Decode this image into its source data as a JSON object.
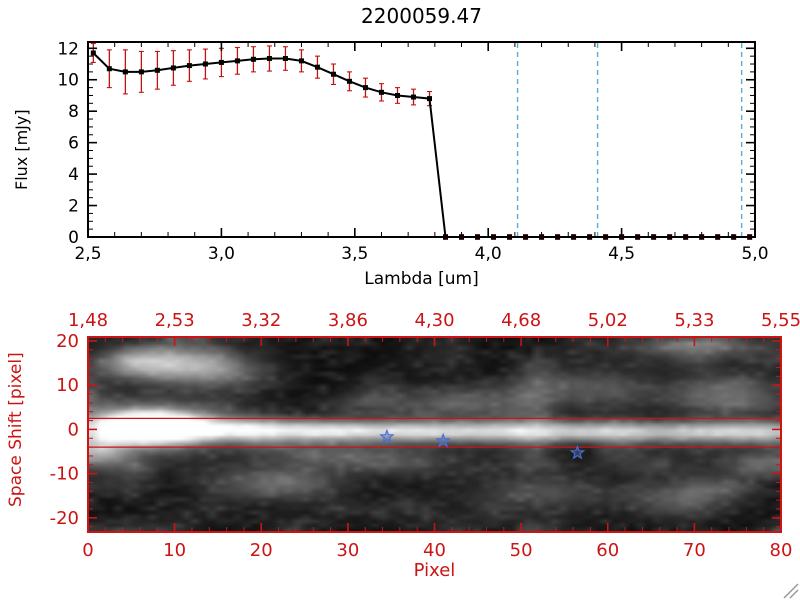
{
  "window": {
    "background": "#ffffff"
  },
  "chart_data": [
    {
      "type": "line",
      "title": "2200059.47",
      "xlabel": "Lambda [um]",
      "ylabel": "Flux [mJy]",
      "xlim": [
        2.5,
        5.0
      ],
      "ylim": [
        0,
        12.4
      ],
      "xticks": [
        2.5,
        3.0,
        3.5,
        4.0,
        4.5,
        5.0
      ],
      "xtick_labels": [
        "2,5",
        "3,0",
        "3,5",
        "4,0",
        "4,5",
        "5,0"
      ],
      "yticks": [
        0,
        2,
        4,
        6,
        8,
        10,
        12
      ],
      "ytick_labels": [
        "0",
        "2",
        "4",
        "6",
        "8",
        "10",
        "12"
      ],
      "x": [
        2.52,
        2.58,
        2.64,
        2.7,
        2.76,
        2.82,
        2.88,
        2.94,
        3.0,
        3.06,
        3.12,
        3.18,
        3.24,
        3.3,
        3.36,
        3.42,
        3.48,
        3.54,
        3.6,
        3.66,
        3.72,
        3.78,
        3.84,
        3.9,
        3.96,
        4.02,
        4.08,
        4.14,
        4.2,
        4.26,
        4.32,
        4.38,
        4.44,
        4.5,
        4.56,
        4.62,
        4.68,
        4.74,
        4.8,
        4.86,
        4.92,
        4.98
      ],
      "flux": [
        11.7,
        10.7,
        10.5,
        10.5,
        10.6,
        10.75,
        10.9,
        11.0,
        11.1,
        11.2,
        11.3,
        11.35,
        11.35,
        11.2,
        10.8,
        10.35,
        9.9,
        9.5,
        9.2,
        9.0,
        8.9,
        8.8,
        0,
        0,
        0,
        0,
        0,
        0,
        0,
        0,
        0,
        0,
        0,
        0,
        0,
        0,
        0,
        0,
        0,
        0,
        0,
        0
      ],
      "err": [
        0.6,
        1.2,
        1.4,
        1.3,
        1.2,
        1.1,
        1.0,
        0.95,
        0.9,
        0.85,
        0.8,
        0.8,
        0.75,
        0.7,
        0.7,
        0.65,
        0.6,
        0.6,
        0.55,
        0.5,
        0.5,
        0.45,
        0.15,
        0.15,
        0.15,
        0.15,
        0.15,
        0.15,
        0.15,
        0.15,
        0.15,
        0.15,
        0.15,
        0.15,
        0.15,
        0.15,
        0.15,
        0.15,
        0.15,
        0.15,
        0.15,
        0.15
      ],
      "dashed_vlines": [
        4.11,
        4.41,
        4.95
      ],
      "colors": {
        "line": "#000000",
        "marker": "#000000",
        "error": "#c41212",
        "vline": "#58aecd"
      }
    },
    {
      "type": "heatmap",
      "xlabel": "Pixel",
      "ylabel": "Space Shift [pixel]",
      "xlim": [
        0,
        80
      ],
      "ylim": [
        -23.2,
        20.9
      ],
      "xticks": [
        0,
        10,
        20,
        30,
        40,
        50,
        60,
        70,
        80
      ],
      "xtick_labels": [
        "0",
        "10",
        "20",
        "30",
        "40",
        "50",
        "60",
        "70",
        "80"
      ],
      "yticks": [
        -20,
        -10,
        0,
        10,
        20
      ],
      "ytick_labels": [
        "-20",
        "-10",
        "0",
        "10",
        "20"
      ],
      "top_axis_labels": [
        "1,48",
        "2,53",
        "3,32",
        "3,86",
        "4,30",
        "4,68",
        "5,02",
        "5,33",
        "5,55"
      ],
      "axis_color": "#cc1414",
      "star_color": "#4a6fd4",
      "guide_lines_y": [
        2.5,
        -4.0
      ],
      "stars": [
        {
          "x": 34.5,
          "y": -1.7
        },
        {
          "x": 41,
          "y": -2.6
        },
        {
          "x": 56.5,
          "y": -5.3
        }
      ],
      "features": [
        {
          "x": 7,
          "y": 0.5,
          "sx": 3.5,
          "sy": 2.0,
          "a": 1.8
        },
        {
          "x": 7,
          "y": 0.5,
          "sx": 7,
          "sy": 4,
          "a": 0.5
        },
        {
          "x": 18,
          "y": 0,
          "sx": 10,
          "sy": 1.6,
          "a": 0.55
        },
        {
          "x": 32,
          "y": -0.5,
          "sx": 12,
          "sy": 1.5,
          "a": 0.42
        },
        {
          "x": 48,
          "y": -0.5,
          "sx": 14,
          "sy": 1.5,
          "a": 0.38
        },
        {
          "x": 64,
          "y": -0.5,
          "sx": 12,
          "sy": 1.5,
          "a": 0.4
        },
        {
          "x": 78,
          "y": -0.5,
          "sx": 6,
          "sy": 1.6,
          "a": 0.45
        },
        {
          "x": 8,
          "y": 15,
          "sx": 4.5,
          "sy": 2.6,
          "a": 0.65
        },
        {
          "x": 15,
          "y": 13,
          "sx": 4,
          "sy": 2.6,
          "a": 0.3
        },
        {
          "x": 1,
          "y": -5,
          "sx": 2.6,
          "sy": 2.6,
          "a": 0.5
        },
        {
          "x": 22,
          "y": -12,
          "sx": 5,
          "sy": 2.6,
          "a": 0.28
        },
        {
          "x": 30,
          "y": -6,
          "sx": 6,
          "sy": 2.2,
          "a": 0.25
        },
        {
          "x": 43,
          "y": 6,
          "sx": 8,
          "sy": 2.6,
          "a": 0.18
        },
        {
          "x": 52,
          "y": -14,
          "sx": 5,
          "sy": 2.6,
          "a": 0.2
        },
        {
          "x": 58,
          "y": 9,
          "sx": 6,
          "sy": 2.6,
          "a": 0.18
        },
        {
          "x": 68,
          "y": -15,
          "sx": 5,
          "sy": 2.6,
          "a": 0.22
        },
        {
          "x": 74,
          "y": 9,
          "sx": 4,
          "sy": 2.6,
          "a": 0.28
        },
        {
          "x": 70,
          "y": 19,
          "sx": 5,
          "sy": 1.6,
          "a": 0.35
        },
        {
          "x": 78,
          "y": -8,
          "sx": 4,
          "sy": 2.2,
          "a": 0.25
        }
      ],
      "noise_seed": 7,
      "noise_amp": 0.12,
      "clump_amp": 0.2
    }
  ]
}
